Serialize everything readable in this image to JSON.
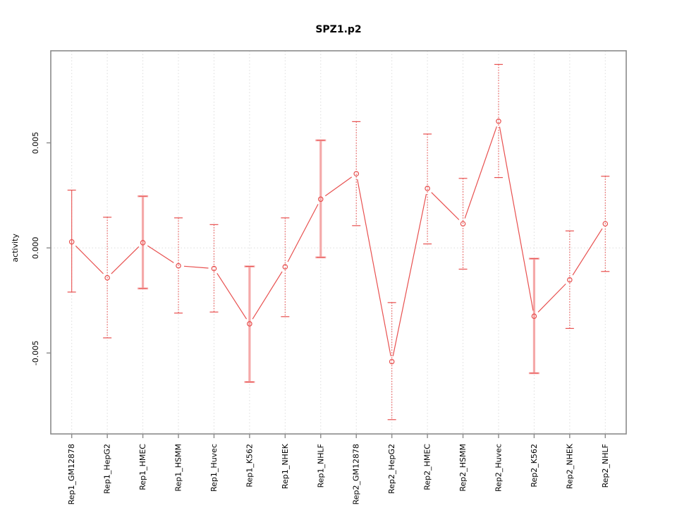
{
  "figure": {
    "title": "SPZ1.p2",
    "background": "#ffffff"
  },
  "chart_data": {
    "type": "line",
    "title": "SPZ1.p2",
    "xlabel": "",
    "ylabel": "activity",
    "legend": "none",
    "grid": {
      "vertical_dotted_at_each_category": true,
      "horizontal_dotted_at_zero": true
    },
    "categories": [
      "Rep1_GM12878",
      "Rep1_HepG2",
      "Rep1_HMEC",
      "Rep1_HSMM",
      "Rep1_Huvec",
      "Rep1_K562",
      "Rep1_NHEK",
      "Rep1_NHLF",
      "Rep2_GM12878",
      "Rep2_HepG2",
      "Rep2_HMEC",
      "Rep2_HSMM",
      "Rep2_Huvec",
      "Rep2_K562",
      "Rep2_NHEK",
      "Rep2_NHLF"
    ],
    "series": [
      {
        "name": "activity",
        "values": [
          0.00029,
          -0.00142,
          0.00025,
          -0.00085,
          -0.00098,
          -0.00361,
          -0.0009,
          0.00232,
          0.00353,
          -0.00541,
          0.00283,
          0.00115,
          0.00603,
          -0.00325,
          -0.00152,
          0.00115
        ],
        "err_low": [
          -0.0021,
          -0.00428,
          -0.00193,
          -0.0031,
          -0.00305,
          -0.00638,
          -0.00327,
          -0.00045,
          0.00106,
          -0.00817,
          0.00019,
          -0.00101,
          0.00335,
          -0.00596,
          -0.00383,
          -0.00112
        ],
        "err_high": [
          0.00275,
          0.00146,
          0.00246,
          0.00143,
          0.00111,
          -0.00088,
          0.00143,
          0.00512,
          0.00601,
          -0.0026,
          0.00542,
          0.00331,
          0.00873,
          -0.00051,
          0.00081,
          0.00341
        ],
        "error_bar_styles": [
          "solid",
          "dotted",
          "thick",
          "dotted",
          "dotted",
          "thick",
          "dotted",
          "thick",
          "dotted",
          "dotted",
          "dotted",
          "dotted",
          "dotted",
          "thick",
          "dotted",
          "dotted"
        ]
      }
    ],
    "yticks": [
      -0.005,
      0.0,
      0.005
    ],
    "ytick_labels": [
      "-0.005",
      "0.000",
      "0.005"
    ],
    "ylim": [
      -0.00885,
      0.00938
    ],
    "marker": "open-circle",
    "colors": {
      "line": "#e8504f",
      "pale_error_bar": "#f5a9a9",
      "grid": "#dcdcdc",
      "axis": "#8a8a8a",
      "text": "#000000"
    }
  }
}
